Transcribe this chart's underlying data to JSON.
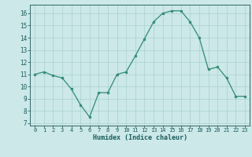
{
  "x": [
    0,
    1,
    2,
    3,
    4,
    5,
    6,
    7,
    8,
    9,
    10,
    11,
    12,
    13,
    14,
    15,
    16,
    17,
    18,
    19,
    20,
    21,
    22,
    23
  ],
  "y": [
    11.0,
    11.2,
    10.9,
    10.7,
    9.8,
    8.5,
    7.5,
    9.5,
    9.5,
    11.0,
    11.2,
    12.5,
    13.9,
    15.3,
    16.0,
    16.2,
    16.2,
    15.3,
    14.0,
    11.4,
    11.6,
    10.7,
    9.2,
    9.2
  ],
  "xlabel": "Humidex (Indice chaleur)",
  "yticks": [
    7,
    8,
    9,
    10,
    11,
    12,
    13,
    14,
    15,
    16
  ],
  "xticks": [
    0,
    1,
    2,
    3,
    4,
    5,
    6,
    7,
    8,
    9,
    10,
    11,
    12,
    13,
    14,
    15,
    16,
    17,
    18,
    19,
    20,
    21,
    22,
    23
  ],
  "line_color": "#2e8b74",
  "marker_color": "#2e8b74",
  "bg_color": "#cce8e8",
  "grid_color": "#aad0d0",
  "axis_color": "#336666",
  "tick_label_color": "#1a5c5c",
  "xlabel_color": "#1a5c5c"
}
